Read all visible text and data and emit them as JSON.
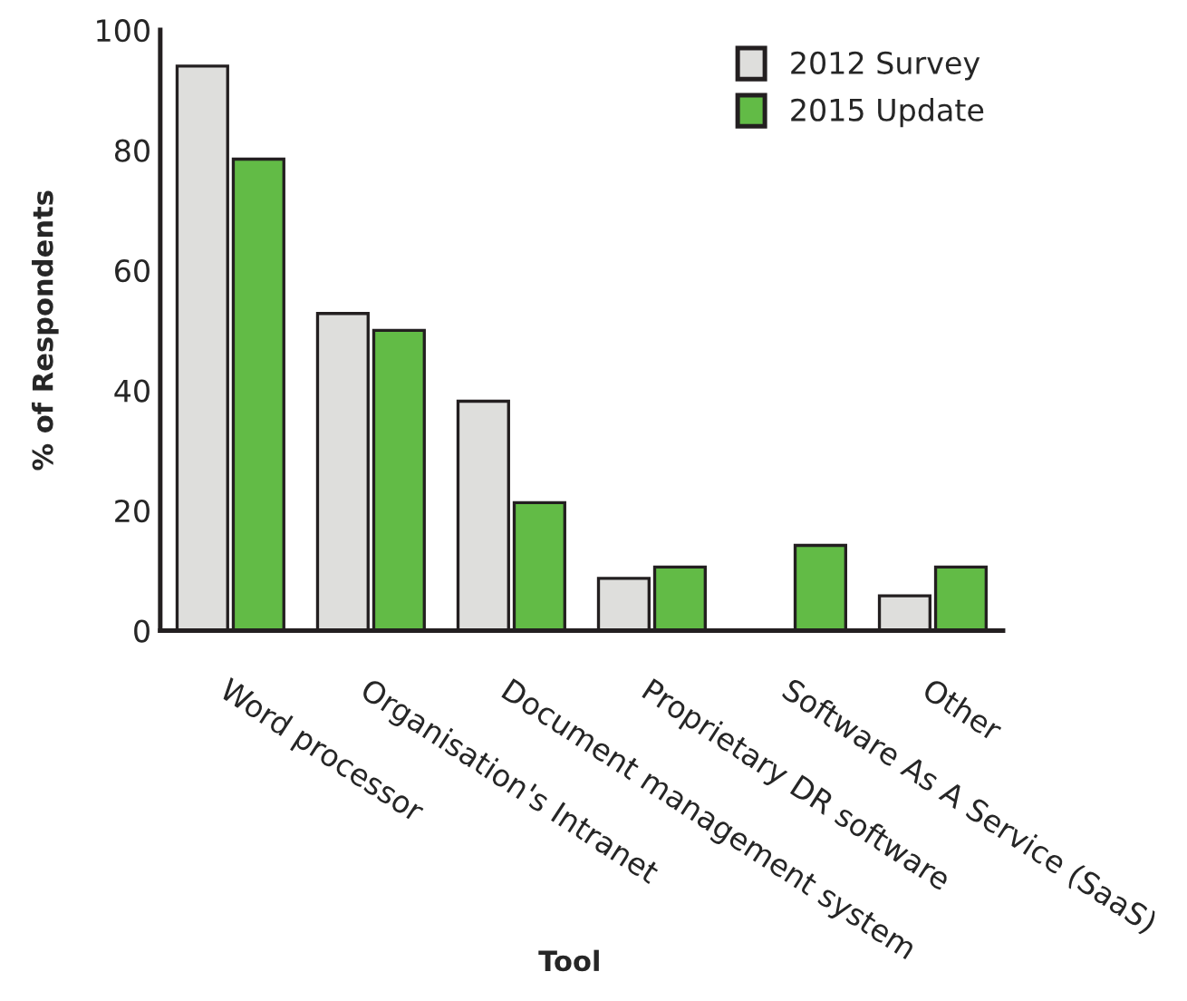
{
  "chart_data": {
    "type": "bar",
    "xlabel": "Tool",
    "ylabel": "% of Respondents",
    "categories": [
      "Word processor",
      "Organisation's Intranet",
      "Document management system",
      "Proprietary DR software",
      "Software As A Service (SaaS)",
      "Other"
    ],
    "series": [
      {
        "name": "2012 Survey",
        "color": "#dededc",
        "values": [
          94,
          52.8,
          38.2,
          8.7,
          0,
          5.8
        ]
      },
      {
        "name": "2015 Update",
        "color": "#62bb46",
        "values": [
          78.5,
          50,
          21.3,
          10.6,
          14.2,
          10.6
        ]
      }
    ],
    "ylim": [
      0,
      100
    ],
    "yticks": [
      0,
      20,
      40,
      60,
      80,
      100
    ],
    "grid": false,
    "legend": "top right"
  }
}
